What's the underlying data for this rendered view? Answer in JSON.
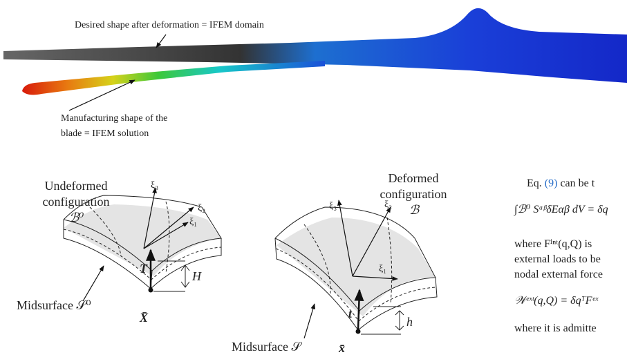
{
  "top_figure": {
    "desired_label": "Desired shape after deformation = IFEM domain",
    "manufacturing_label": [
      "Manufacturing shape of the",
      "blade = IFEM solution"
    ]
  },
  "left_shell": {
    "title": [
      "Undeformed",
      "configuration"
    ],
    "body": "ℬ⁰",
    "axes": [
      "ξ₁",
      "ξ₂",
      "ξ₃"
    ],
    "normal": "T",
    "midsurface": "Midsurface 𝒮⁰",
    "position": "X̄",
    "thickness": "H"
  },
  "right_shell": {
    "title": [
      "Deformed",
      "configuration"
    ],
    "body": "ℬ",
    "axes": [
      "ξ₁",
      "ξ₂",
      "ξ₃"
    ],
    "normal": "t",
    "midsurface": "Midsurface 𝒮",
    "position": "x̄",
    "thickness": "h"
  },
  "text_column": {
    "paragraph_1": [
      "Eq. ",
      "(9)",
      " can be t"
    ],
    "equation_1": "∫ℬ⁰ SᵅᵝδEαβ dV = δq",
    "paragraph_2": [
      "where Fⁱⁿᵗ(q,Q) is",
      "external loads to be",
      "nodal external force"
    ],
    "equation_2": "𝒲ᵉˣᵗ(q,Q) = δqᵀFᵉˣ",
    "paragraph_3": "where it is admitte"
  }
}
